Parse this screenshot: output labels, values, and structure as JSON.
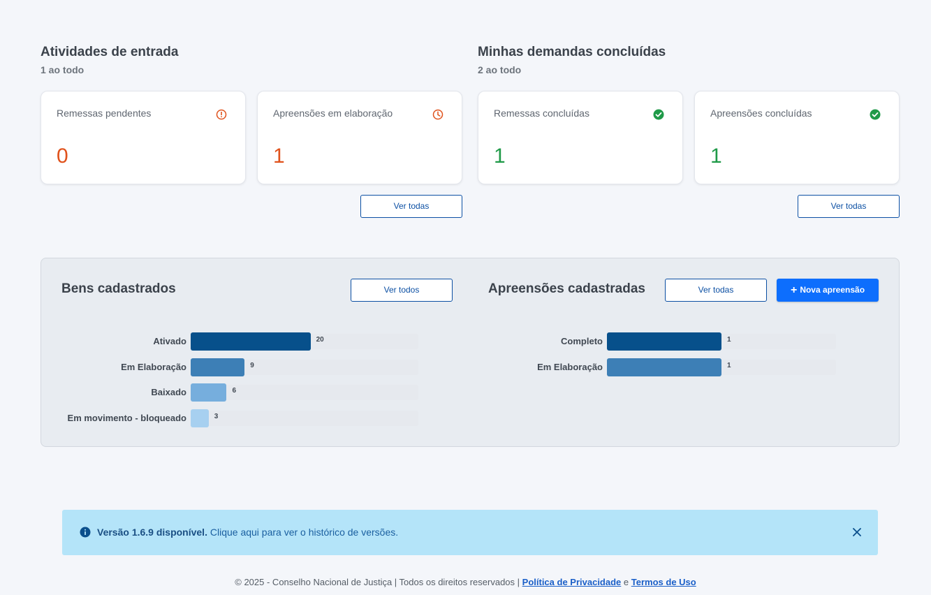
{
  "entrada": {
    "title": "Atividades de entrada",
    "subtitle": "1 ao todo",
    "cards": [
      {
        "label": "Remessas pendentes",
        "value": "0",
        "icon": "alert-circle-icon"
      },
      {
        "label": "Apreensões em elaboração",
        "value": "1",
        "icon": "clock-icon"
      }
    ],
    "button": "Ver todas"
  },
  "concluidas": {
    "title": "Minhas demandas concluídas",
    "subtitle": "2 ao todo",
    "cards": [
      {
        "label": "Remessas concluídas",
        "value": "1",
        "icon": "check-circle-icon"
      },
      {
        "label": "Apreensões concluídas",
        "value": "1",
        "icon": "check-circle-icon"
      }
    ],
    "button": "Ver todas"
  },
  "colors": {
    "orange": "#e0521c",
    "green": "#1f9a48",
    "primary": "#0d6efd",
    "outline": "#0b4fa3"
  },
  "bens": {
    "title": "Bens cadastrados",
    "button": "Ver todos"
  },
  "apreensoes": {
    "title": "Apreensões cadastradas",
    "button": "Ver todas",
    "new_button": "Nova apreensão"
  },
  "chart_data": [
    {
      "type": "bar",
      "orientation": "horizontal",
      "categories": [
        "Ativado",
        "Em Elaboração",
        "Baixado",
        "Em movimento - bloqueado"
      ],
      "values": [
        20,
        9,
        6,
        3
      ],
      "colors": [
        "#07508b",
        "#3d7fb6",
        "#76aedd",
        "#a7d0f0"
      ],
      "xlim": [
        0,
        38
      ]
    },
    {
      "type": "bar",
      "orientation": "horizontal",
      "categories": [
        "Completo",
        "Em Elaboração"
      ],
      "values": [
        1,
        1
      ],
      "colors": [
        "#07508b",
        "#3d7fb6"
      ],
      "xlim": [
        0,
        2
      ]
    }
  ],
  "alert": {
    "version_text": "Versão 1.6.9 disponível.",
    "link_text": "Clique aqui para ver o histórico de versões."
  },
  "footer": {
    "copyright": "© 2025 - Conselho Nacional de Justiça | Todos os direitos reservados |",
    "privacy": "Política de Privacidade",
    "and": "e",
    "terms": "Termos de Uso"
  }
}
